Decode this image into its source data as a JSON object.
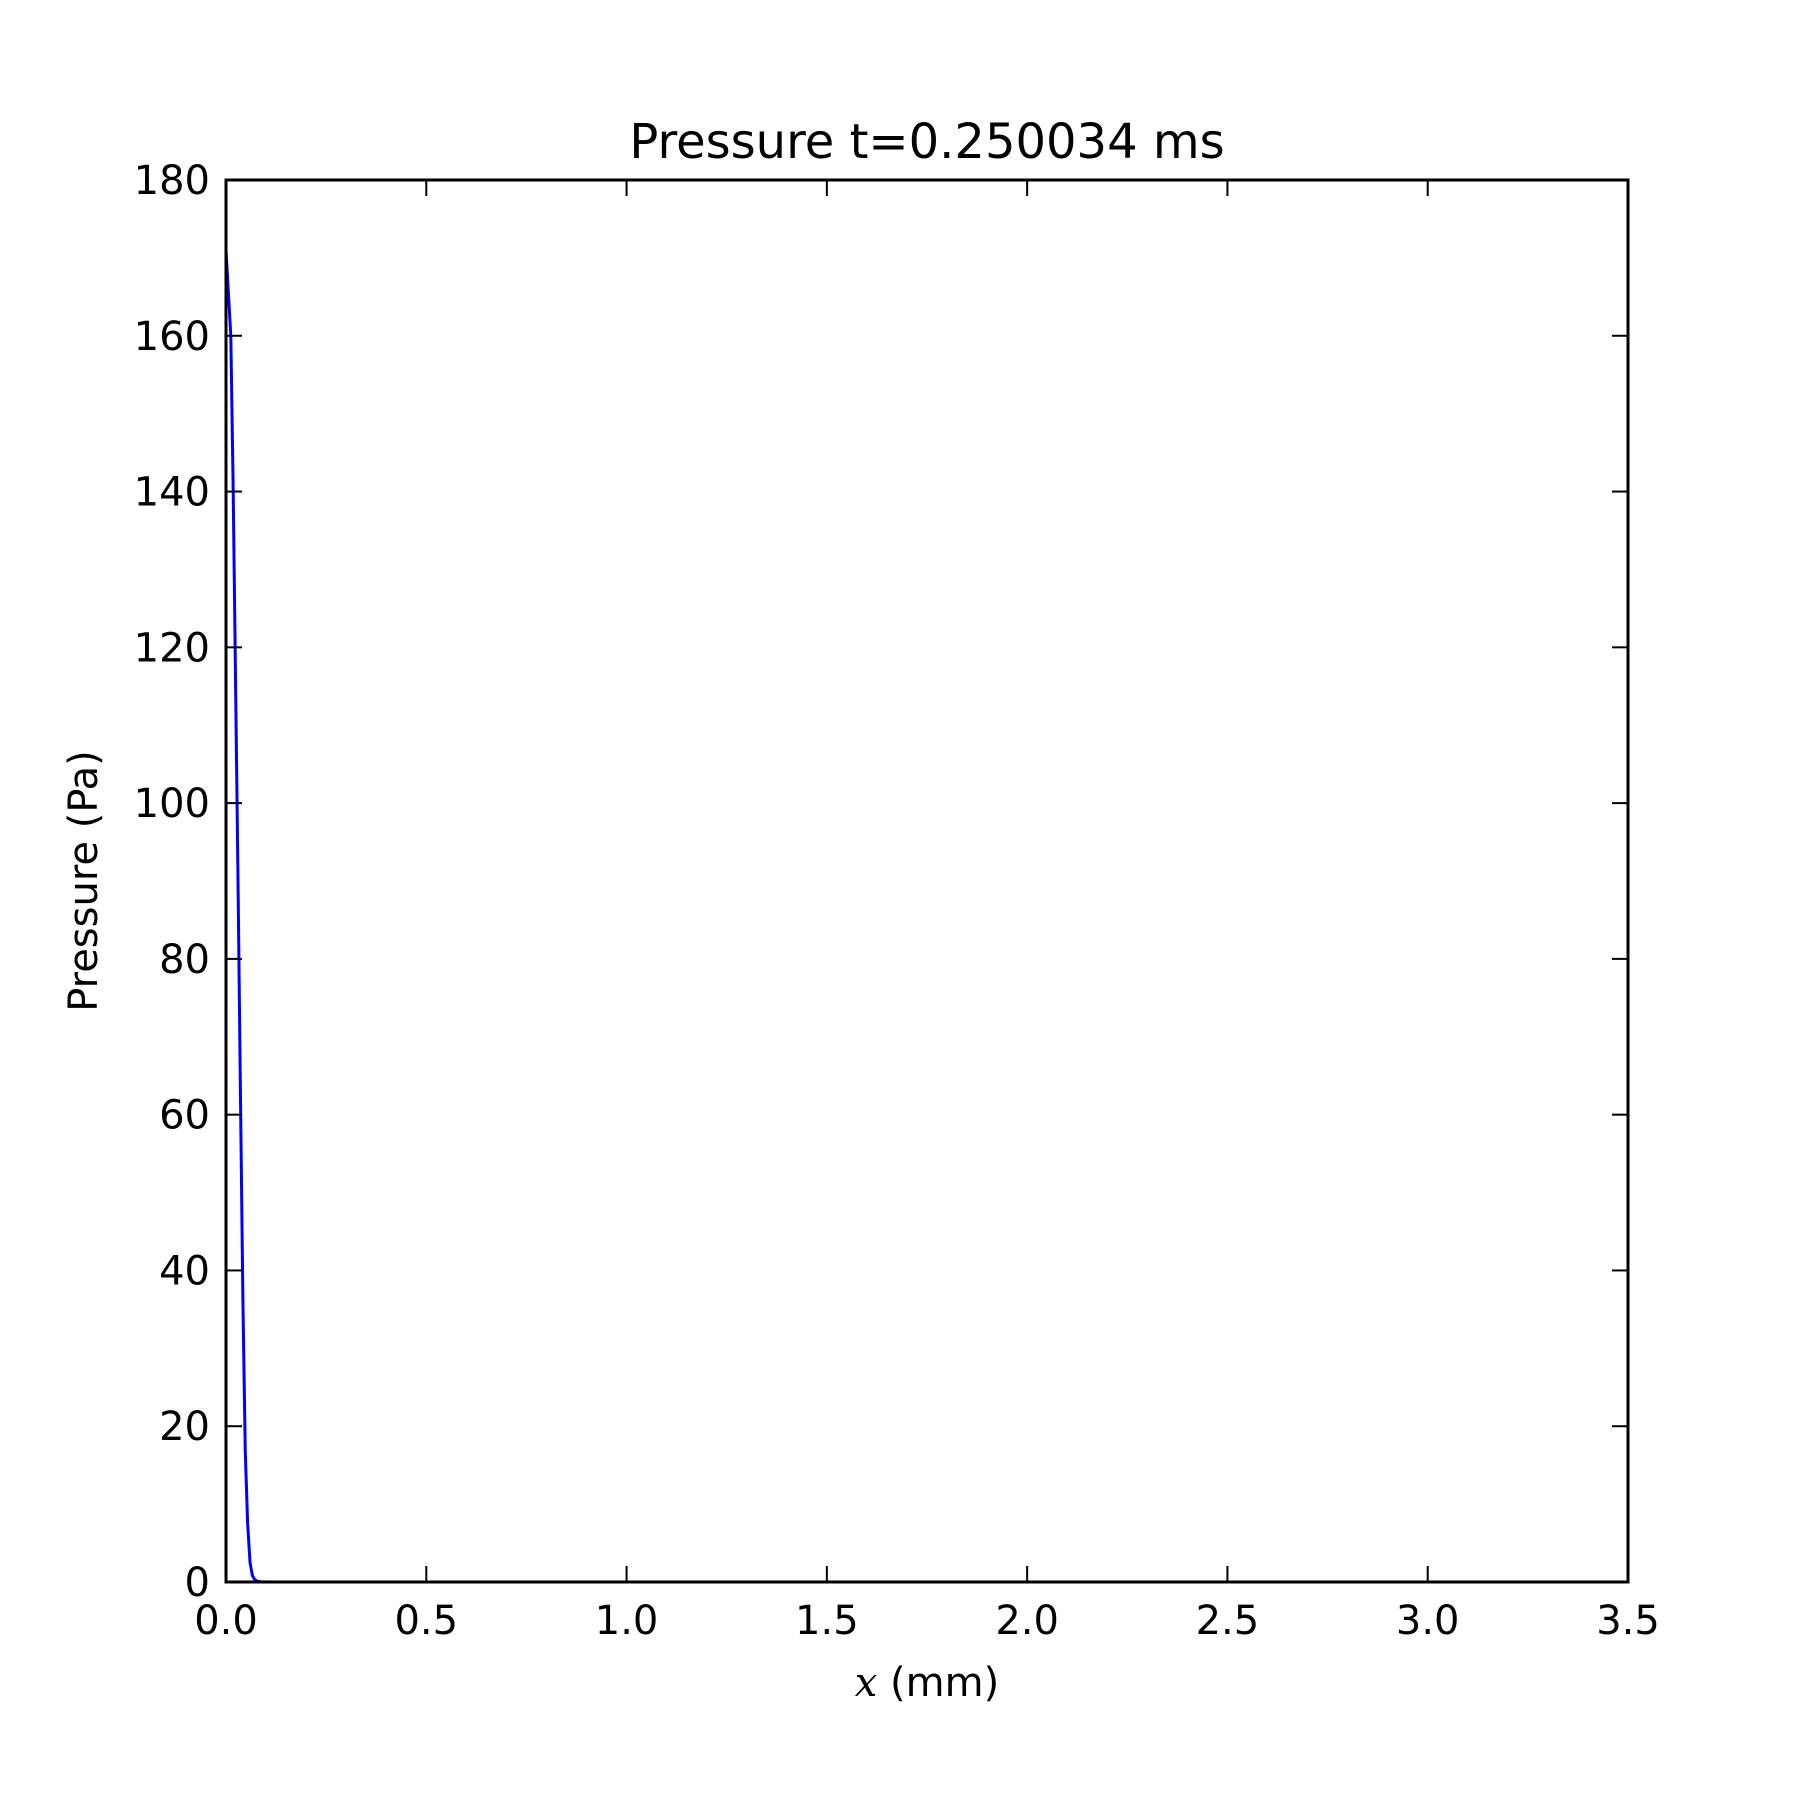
{
  "chart_data": {
    "type": "line",
    "title": "Pressure t=0.250034 ms",
    "xlabel_var": "x",
    "xlabel_unit": " (mm)",
    "ylabel": "Pressure (Pa)",
    "xlim": [
      0.0,
      3.5
    ],
    "ylim": [
      0,
      180
    ],
    "xticks": [
      0.0,
      0.5,
      1.0,
      1.5,
      2.0,
      2.5,
      3.0,
      3.5
    ],
    "xtick_labels": [
      "0.0",
      "0.5",
      "1.0",
      "1.5",
      "2.0",
      "2.5",
      "3.0",
      "3.5"
    ],
    "yticks": [
      0,
      20,
      40,
      60,
      80,
      100,
      120,
      140,
      160,
      180
    ],
    "ytick_labels": [
      "0",
      "20",
      "40",
      "60",
      "80",
      "100",
      "120",
      "140",
      "160",
      "180"
    ],
    "grid": false,
    "series": [
      {
        "color": "#0000ff",
        "x": [
          0.0,
          0.012,
          0.018,
          0.024,
          0.03,
          0.036,
          0.042,
          0.048,
          0.054,
          0.06,
          0.066,
          0.072,
          0.078,
          0.084,
          0.09,
          0.1,
          0.12,
          0.15,
          0.2,
          0.3,
          0.5,
          1.0,
          1.5,
          2.0,
          2.5,
          3.0,
          3.5
        ],
        "y": [
          171,
          160,
          140,
          115,
          90,
          63,
          37,
          17,
          7.5,
          2.5,
          0.8,
          0.3,
          0.1,
          0.05,
          0.02,
          0.01,
          0,
          0,
          0,
          0,
          0,
          0,
          0,
          0,
          0,
          0,
          0
        ]
      }
    ]
  }
}
